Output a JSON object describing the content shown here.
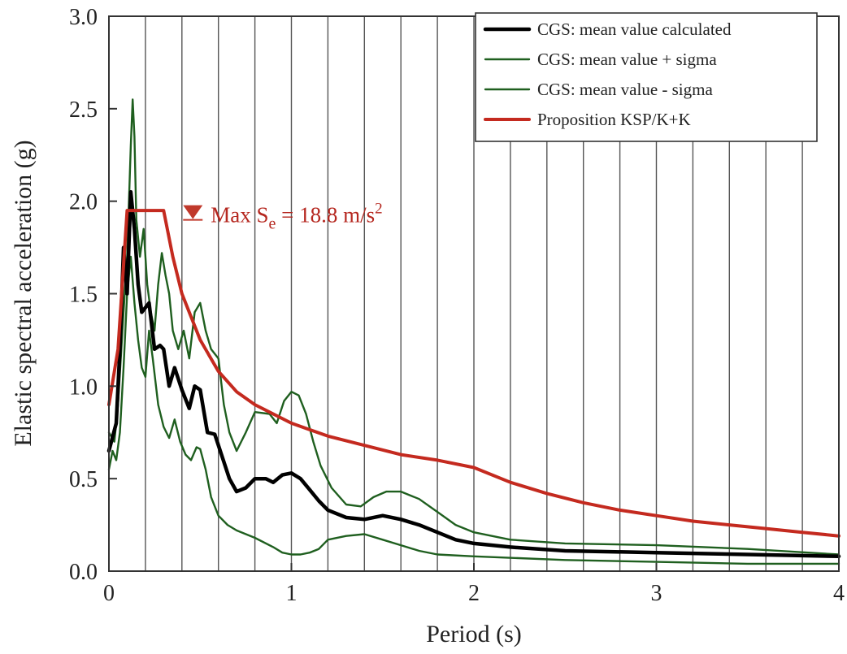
{
  "chart_data": {
    "type": "line",
    "title": "",
    "xlabel": "Period (s)",
    "ylabel": "Elastic spectral acceleration (g)",
    "xlim": [
      0,
      4
    ],
    "ylim": [
      0,
      3
    ],
    "x_ticks": [
      0,
      1,
      2,
      3,
      4
    ],
    "x_tick_labels": [
      "0",
      "1",
      "2",
      "3",
      "4"
    ],
    "y_ticks": [
      0,
      0.5,
      1.0,
      1.5,
      2.0,
      2.5,
      3.0
    ],
    "y_tick_labels": [
      "0.0",
      "0.5",
      "1.0",
      "1.5",
      "2.0",
      "2.5",
      "3.0"
    ],
    "grid": {
      "vertical_step": 0.2,
      "horizontal": false
    },
    "legend_position": "top-right",
    "annotation": {
      "marker": "triangle-down",
      "prefix": "Max S",
      "subscript": "e",
      "suffix": " = 18.8 m/s",
      "superscript": "2",
      "x": 0.46,
      "y": 1.93,
      "color": "#c0392b"
    },
    "series": [
      {
        "name": "CGS: mean value calculated",
        "color": "#000000",
        "points": [
          [
            0,
            0.65
          ],
          [
            0.04,
            0.8
          ],
          [
            0.06,
            1.2
          ],
          [
            0.08,
            1.75
          ],
          [
            0.1,
            1.5
          ],
          [
            0.12,
            2.05
          ],
          [
            0.14,
            1.85
          ],
          [
            0.16,
            1.55
          ],
          [
            0.18,
            1.4
          ],
          [
            0.22,
            1.45
          ],
          [
            0.25,
            1.2
          ],
          [
            0.28,
            1.22
          ],
          [
            0.3,
            1.2
          ],
          [
            0.33,
            1.0
          ],
          [
            0.36,
            1.1
          ],
          [
            0.4,
            0.98
          ],
          [
            0.44,
            0.88
          ],
          [
            0.47,
            1.0
          ],
          [
            0.5,
            0.98
          ],
          [
            0.54,
            0.75
          ],
          [
            0.58,
            0.74
          ],
          [
            0.62,
            0.62
          ],
          [
            0.66,
            0.5
          ],
          [
            0.7,
            0.43
          ],
          [
            0.75,
            0.45
          ],
          [
            0.8,
            0.5
          ],
          [
            0.86,
            0.5
          ],
          [
            0.9,
            0.48
          ],
          [
            0.95,
            0.52
          ],
          [
            1.0,
            0.53
          ],
          [
            1.05,
            0.5
          ],
          [
            1.1,
            0.44
          ],
          [
            1.15,
            0.38
          ],
          [
            1.2,
            0.33
          ],
          [
            1.3,
            0.29
          ],
          [
            1.4,
            0.28
          ],
          [
            1.5,
            0.3
          ],
          [
            1.6,
            0.28
          ],
          [
            1.7,
            0.25
          ],
          [
            1.8,
            0.21
          ],
          [
            1.9,
            0.17
          ],
          [
            2.0,
            0.15
          ],
          [
            2.2,
            0.13
          ],
          [
            2.5,
            0.11
          ],
          [
            3.0,
            0.1
          ],
          [
            3.5,
            0.09
          ],
          [
            4.0,
            0.08
          ]
        ]
      },
      {
        "name": "CGS: mean value + sigma",
        "color": "#1f5f1f",
        "points": [
          [
            0,
            0.75
          ],
          [
            0.03,
            0.7
          ],
          [
            0.05,
            0.9
          ],
          [
            0.08,
            1.4
          ],
          [
            0.1,
            1.7
          ],
          [
            0.12,
            2.3
          ],
          [
            0.13,
            2.55
          ],
          [
            0.14,
            2.35
          ],
          [
            0.15,
            1.9
          ],
          [
            0.17,
            1.7
          ],
          [
            0.19,
            1.85
          ],
          [
            0.21,
            1.55
          ],
          [
            0.23,
            1.4
          ],
          [
            0.25,
            1.3
          ],
          [
            0.27,
            1.55
          ],
          [
            0.29,
            1.72
          ],
          [
            0.31,
            1.6
          ],
          [
            0.33,
            1.5
          ],
          [
            0.35,
            1.3
          ],
          [
            0.38,
            1.2
          ],
          [
            0.41,
            1.3
          ],
          [
            0.44,
            1.15
          ],
          [
            0.47,
            1.4
          ],
          [
            0.5,
            1.45
          ],
          [
            0.53,
            1.3
          ],
          [
            0.56,
            1.2
          ],
          [
            0.6,
            1.15
          ],
          [
            0.63,
            0.9
          ],
          [
            0.66,
            0.75
          ],
          [
            0.7,
            0.65
          ],
          [
            0.75,
            0.75
          ],
          [
            0.8,
            0.86
          ],
          [
            0.88,
            0.85
          ],
          [
            0.92,
            0.8
          ],
          [
            0.96,
            0.92
          ],
          [
            1.0,
            0.97
          ],
          [
            1.04,
            0.95
          ],
          [
            1.08,
            0.85
          ],
          [
            1.12,
            0.7
          ],
          [
            1.16,
            0.57
          ],
          [
            1.22,
            0.45
          ],
          [
            1.3,
            0.36
          ],
          [
            1.38,
            0.35
          ],
          [
            1.45,
            0.4
          ],
          [
            1.52,
            0.43
          ],
          [
            1.6,
            0.43
          ],
          [
            1.7,
            0.39
          ],
          [
            1.8,
            0.32
          ],
          [
            1.9,
            0.25
          ],
          [
            2.0,
            0.21
          ],
          [
            2.2,
            0.17
          ],
          [
            2.5,
            0.15
          ],
          [
            3.0,
            0.14
          ],
          [
            3.5,
            0.12
          ],
          [
            4.0,
            0.09
          ]
        ]
      },
      {
        "name": "CGS: mean value - sigma",
        "color": "#1f5f1f",
        "points": [
          [
            0,
            0.55
          ],
          [
            0.02,
            0.65
          ],
          [
            0.04,
            0.6
          ],
          [
            0.06,
            0.75
          ],
          [
            0.08,
            1.1
          ],
          [
            0.1,
            1.5
          ],
          [
            0.12,
            1.7
          ],
          [
            0.14,
            1.45
          ],
          [
            0.16,
            1.25
          ],
          [
            0.18,
            1.1
          ],
          [
            0.2,
            1.05
          ],
          [
            0.22,
            1.3
          ],
          [
            0.24,
            1.15
          ],
          [
            0.27,
            0.9
          ],
          [
            0.3,
            0.78
          ],
          [
            0.33,
            0.72
          ],
          [
            0.36,
            0.82
          ],
          [
            0.39,
            0.7
          ],
          [
            0.42,
            0.63
          ],
          [
            0.45,
            0.6
          ],
          [
            0.48,
            0.67
          ],
          [
            0.5,
            0.66
          ],
          [
            0.53,
            0.55
          ],
          [
            0.56,
            0.4
          ],
          [
            0.6,
            0.3
          ],
          [
            0.65,
            0.25
          ],
          [
            0.7,
            0.22
          ],
          [
            0.8,
            0.18
          ],
          [
            0.9,
            0.13
          ],
          [
            0.95,
            0.1
          ],
          [
            1.0,
            0.09
          ],
          [
            1.05,
            0.09
          ],
          [
            1.1,
            0.1
          ],
          [
            1.15,
            0.12
          ],
          [
            1.2,
            0.17
          ],
          [
            1.3,
            0.19
          ],
          [
            1.4,
            0.2
          ],
          [
            1.5,
            0.17
          ],
          [
            1.6,
            0.14
          ],
          [
            1.7,
            0.11
          ],
          [
            1.8,
            0.09
          ],
          [
            2.0,
            0.08
          ],
          [
            2.5,
            0.06
          ],
          [
            3.0,
            0.05
          ],
          [
            3.5,
            0.04
          ],
          [
            4.0,
            0.04
          ]
        ]
      },
      {
        "name": "Proposition KSP/K+K",
        "color": "#c42a1f",
        "points": [
          [
            0,
            0.9
          ],
          [
            0.05,
            1.2
          ],
          [
            0.1,
            1.95
          ],
          [
            0.2,
            1.95
          ],
          [
            0.3,
            1.95
          ],
          [
            0.35,
            1.7
          ],
          [
            0.4,
            1.5
          ],
          [
            0.5,
            1.25
          ],
          [
            0.6,
            1.08
          ],
          [
            0.7,
            0.97
          ],
          [
            0.8,
            0.9
          ],
          [
            1.0,
            0.8
          ],
          [
            1.2,
            0.73
          ],
          [
            1.4,
            0.68
          ],
          [
            1.6,
            0.63
          ],
          [
            1.8,
            0.6
          ],
          [
            2.0,
            0.56
          ],
          [
            2.2,
            0.48
          ],
          [
            2.4,
            0.42
          ],
          [
            2.6,
            0.37
          ],
          [
            2.8,
            0.33
          ],
          [
            3.0,
            0.3
          ],
          [
            3.2,
            0.27
          ],
          [
            3.4,
            0.25
          ],
          [
            3.6,
            0.23
          ],
          [
            3.8,
            0.21
          ],
          [
            4.0,
            0.19
          ]
        ]
      }
    ]
  }
}
